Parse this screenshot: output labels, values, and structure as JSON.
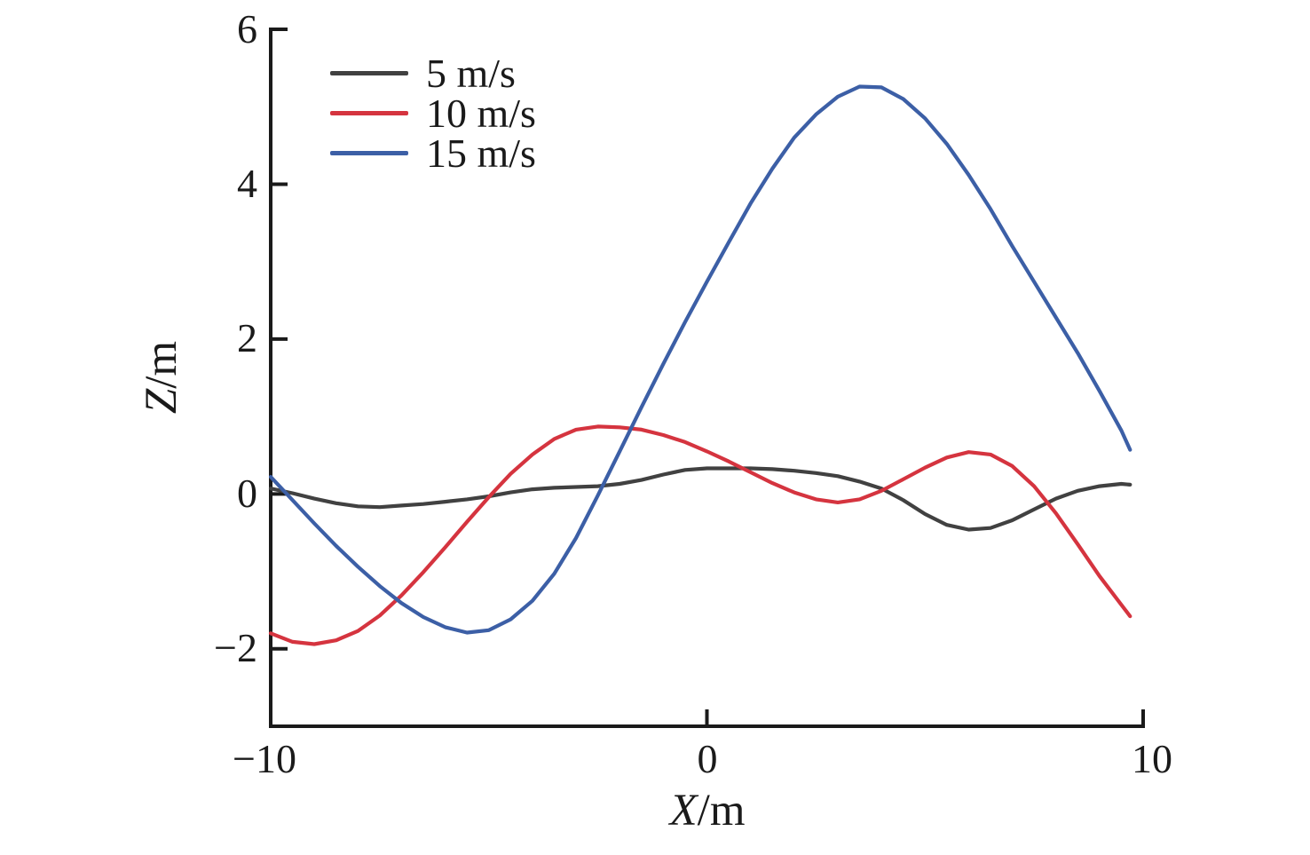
{
  "chart_data": {
    "type": "line",
    "title": "",
    "xlabel": "X/m",
    "ylabel": "Z/m",
    "axis_labels": {
      "x_var": "X",
      "x_unit": "/m",
      "y_var": "Z",
      "y_unit": "/m"
    },
    "xlim": [
      -10,
      10
    ],
    "ylim": [
      -3,
      6
    ],
    "grid": false,
    "legend_position": "upper left inside",
    "axis_color": "#1a1a1a",
    "xticks": [
      {
        "value": -10,
        "label": "−10"
      },
      {
        "value": 0,
        "label": "0"
      },
      {
        "value": 10,
        "label": "10"
      }
    ],
    "yticks": [
      {
        "value": 6,
        "label": "6"
      },
      {
        "value": 4,
        "label": "4"
      },
      {
        "value": 2,
        "label": "2"
      },
      {
        "value": 0,
        "label": "0"
      },
      {
        "value": -2,
        "label": "−2"
      }
    ],
    "series": [
      {
        "name": "5 m/s",
        "color": "#414141",
        "points": [
          [
            -10,
            0.07
          ],
          [
            -9.5,
            0.01
          ],
          [
            -9,
            -0.06
          ],
          [
            -8.5,
            -0.12
          ],
          [
            -8,
            -0.16
          ],
          [
            -7.5,
            -0.17
          ],
          [
            -7,
            -0.15
          ],
          [
            -6.5,
            -0.13
          ],
          [
            -6,
            -0.1
          ],
          [
            -5.5,
            -0.07
          ],
          [
            -5,
            -0.03
          ],
          [
            -4.5,
            0.02
          ],
          [
            -4,
            0.06
          ],
          [
            -3.5,
            0.08
          ],
          [
            -3,
            0.09
          ],
          [
            -2.5,
            0.1
          ],
          [
            -2,
            0.13
          ],
          [
            -1.5,
            0.18
          ],
          [
            -1,
            0.25
          ],
          [
            -0.5,
            0.31
          ],
          [
            0,
            0.33
          ],
          [
            0.5,
            0.33
          ],
          [
            1,
            0.33
          ],
          [
            1.5,
            0.32
          ],
          [
            2,
            0.3
          ],
          [
            2.5,
            0.27
          ],
          [
            3,
            0.23
          ],
          [
            3.5,
            0.16
          ],
          [
            4,
            0.07
          ],
          [
            4.5,
            -0.08
          ],
          [
            5,
            -0.26
          ],
          [
            5.5,
            -0.4
          ],
          [
            6,
            -0.46
          ],
          [
            6.5,
            -0.44
          ],
          [
            7,
            -0.34
          ],
          [
            7.5,
            -0.2
          ],
          [
            8,
            -0.06
          ],
          [
            8.5,
            0.04
          ],
          [
            9,
            0.1
          ],
          [
            9.5,
            0.13
          ],
          [
            9.7,
            0.12
          ]
        ]
      },
      {
        "name": "10 m/s",
        "color": "#d5343f",
        "points": [
          [
            -10,
            -1.8
          ],
          [
            -9.5,
            -1.91
          ],
          [
            -9,
            -1.94
          ],
          [
            -8.5,
            -1.89
          ],
          [
            -8,
            -1.77
          ],
          [
            -7.5,
            -1.57
          ],
          [
            -7,
            -1.31
          ],
          [
            -6.5,
            -1.01
          ],
          [
            -6,
            -0.69
          ],
          [
            -5.5,
            -0.36
          ],
          [
            -5,
            -0.04
          ],
          [
            -4.5,
            0.26
          ],
          [
            -4,
            0.51
          ],
          [
            -3.5,
            0.71
          ],
          [
            -3,
            0.83
          ],
          [
            -2.5,
            0.87
          ],
          [
            -2,
            0.86
          ],
          [
            -1.5,
            0.83
          ],
          [
            -1,
            0.76
          ],
          [
            -0.5,
            0.67
          ],
          [
            0,
            0.55
          ],
          [
            0.5,
            0.42
          ],
          [
            1,
            0.28
          ],
          [
            1.5,
            0.14
          ],
          [
            2,
            0.02
          ],
          [
            2.5,
            -0.07
          ],
          [
            3,
            -0.11
          ],
          [
            3.5,
            -0.07
          ],
          [
            4,
            0.04
          ],
          [
            4.5,
            0.19
          ],
          [
            5,
            0.34
          ],
          [
            5.5,
            0.47
          ],
          [
            6,
            0.54
          ],
          [
            6.5,
            0.51
          ],
          [
            7,
            0.36
          ],
          [
            7.5,
            0.1
          ],
          [
            8,
            -0.25
          ],
          [
            8.5,
            -0.65
          ],
          [
            9,
            -1.06
          ],
          [
            9.5,
            -1.43
          ],
          [
            9.7,
            -1.58
          ]
        ]
      },
      {
        "name": "15 m/s",
        "color": "#3c5fa6",
        "points": [
          [
            -10,
            0.22
          ],
          [
            -9.5,
            -0.08
          ],
          [
            -9,
            -0.38
          ],
          [
            -8.5,
            -0.67
          ],
          [
            -8,
            -0.94
          ],
          [
            -7.5,
            -1.19
          ],
          [
            -7,
            -1.41
          ],
          [
            -6.5,
            -1.59
          ],
          [
            -6,
            -1.72
          ],
          [
            -5.5,
            -1.79
          ],
          [
            -5,
            -1.76
          ],
          [
            -4.5,
            -1.62
          ],
          [
            -4,
            -1.38
          ],
          [
            -3.5,
            -1.03
          ],
          [
            -3,
            -0.57
          ],
          [
            -2.5,
            -0.02
          ],
          [
            -2,
            0.55
          ],
          [
            -1.5,
            1.12
          ],
          [
            -1,
            1.68
          ],
          [
            -0.5,
            2.22
          ],
          [
            0,
            2.74
          ],
          [
            0.5,
            3.25
          ],
          [
            1,
            3.75
          ],
          [
            1.5,
            4.2
          ],
          [
            2,
            4.6
          ],
          [
            2.5,
            4.9
          ],
          [
            3,
            5.13
          ],
          [
            3.5,
            5.26
          ],
          [
            4,
            5.25
          ],
          [
            4.5,
            5.1
          ],
          [
            5,
            4.85
          ],
          [
            5.5,
            4.52
          ],
          [
            6,
            4.12
          ],
          [
            6.5,
            3.68
          ],
          [
            7,
            3.2
          ],
          [
            7.5,
            2.74
          ],
          [
            8,
            2.28
          ],
          [
            8.5,
            1.82
          ],
          [
            9,
            1.33
          ],
          [
            9.5,
            0.82
          ],
          [
            9.7,
            0.57
          ]
        ]
      }
    ]
  }
}
